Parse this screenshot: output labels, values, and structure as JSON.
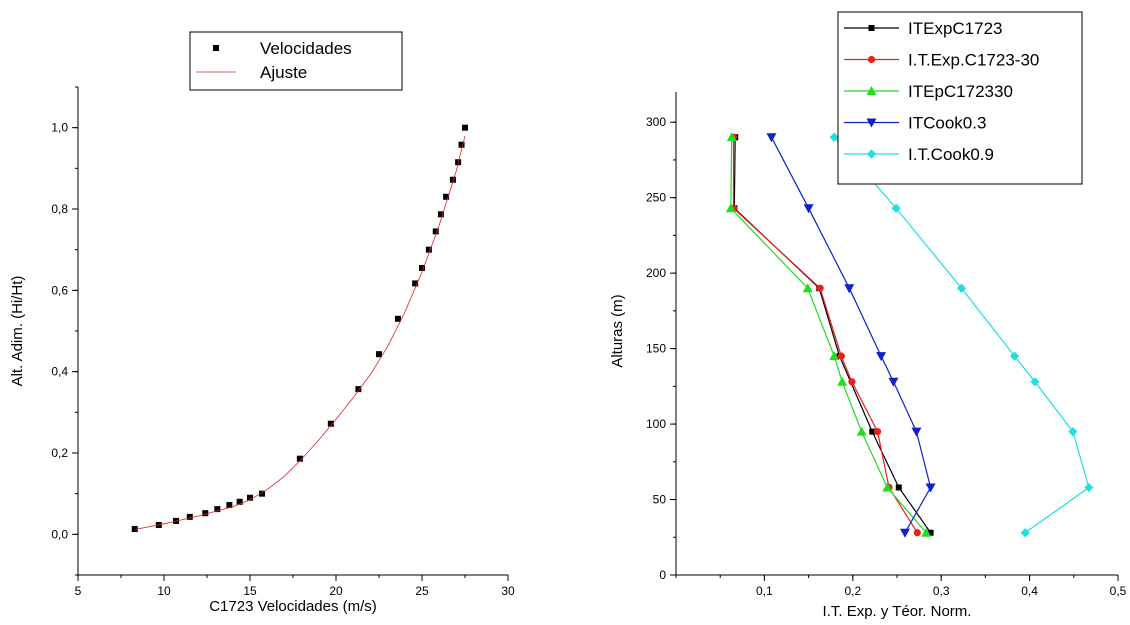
{
  "chart_data": [
    {
      "type": "scatter",
      "xlabel": "C1723 Velocidades (m/s)",
      "ylabel": "Alt. Adim. (Hi/Ht)",
      "xlim": [
        5,
        30
      ],
      "ylim": [
        -0.1,
        1.1
      ],
      "x_ticks": [
        "5",
        "10",
        "15",
        "20",
        "25",
        "30"
      ],
      "y_ticks": [
        "0,0",
        "0,2",
        "0,4",
        "0,6",
        "0,8",
        "1,0"
      ],
      "legend_position": "top",
      "grid": false,
      "series": [
        {
          "name": "Velocidades",
          "style": "markers",
          "color": "#000000",
          "marker": "square",
          "x": [
            8.3,
            9.7,
            10.7,
            11.5,
            12.4,
            13.1,
            13.8,
            14.4,
            15.0,
            15.7,
            17.9,
            19.7,
            21.3,
            22.5,
            23.6,
            24.6,
            25.0,
            25.4,
            25.8,
            26.1,
            26.4,
            26.8,
            27.1,
            27.3,
            27.5
          ],
          "y": [
            0.013,
            0.023,
            0.033,
            0.043,
            0.052,
            0.062,
            0.072,
            0.08,
            0.09,
            0.1,
            0.186,
            0.272,
            0.357,
            0.443,
            0.53,
            0.617,
            0.655,
            0.7,
            0.745,
            0.787,
            0.83,
            0.872,
            0.915,
            0.958,
            1.0
          ]
        },
        {
          "name": "Ajuste",
          "style": "line",
          "color": "#d62728",
          "x": [
            8.3,
            10,
            12,
            14,
            15,
            16,
            17,
            18,
            19,
            20,
            21,
            22,
            23,
            24,
            25,
            26,
            27,
            27.5
          ],
          "y": [
            0.012,
            0.026,
            0.045,
            0.068,
            0.085,
            0.11,
            0.143,
            0.185,
            0.232,
            0.283,
            0.336,
            0.393,
            0.462,
            0.546,
            0.645,
            0.76,
            0.895,
            0.98
          ]
        }
      ]
    },
    {
      "type": "line",
      "xlabel": "I.T. Exp. y Téor. Norm.",
      "ylabel": "Alturas (m)",
      "xlim": [
        0.0,
        0.5
      ],
      "ylim": [
        0,
        320
      ],
      "x_ticks": [
        "0,1",
        "0,2",
        "0,3",
        "0,4",
        "0,5"
      ],
      "y_ticks": [
        "0",
        "50",
        "100",
        "150",
        "200",
        "250",
        "300"
      ],
      "legend_position": "top-right",
      "grid": false,
      "series": [
        {
          "name": "ITExpC1723",
          "color": "#000000",
          "marker": "square",
          "x": [
            0.288,
            0.252,
            0.222,
            0.185,
            0.162,
            0.066,
            0.067
          ],
          "y": [
            28,
            58,
            95,
            145,
            190,
            243,
            290
          ]
        },
        {
          "name": "I.T.Exp.C1723-30",
          "color": "#e8211a",
          "marker": "circle",
          "x": [
            0.273,
            0.241,
            0.228,
            0.199,
            0.187,
            0.163,
            0.065,
            0.065
          ],
          "y": [
            28,
            58,
            95,
            128,
            145,
            190,
            243,
            290
          ]
        },
        {
          "name": "ITEpC172330",
          "color": "#22dd22",
          "marker": "triangle-up",
          "x": [
            0.283,
            0.239,
            0.21,
            0.188,
            0.179,
            0.149,
            0.062,
            0.063
          ],
          "y": [
            28,
            58,
            95,
            128,
            145,
            190,
            243,
            290
          ]
        },
        {
          "name": "ITCook0.3",
          "color": "#1020cc",
          "marker": "triangle-down",
          "x": [
            0.259,
            0.288,
            0.272,
            0.246,
            0.232,
            0.196,
            0.15,
            0.108
          ],
          "y": [
            28,
            58,
            95,
            128,
            145,
            190,
            243,
            290
          ]
        },
        {
          "name": "I.T.Cook0.9",
          "color": "#22dddd",
          "marker": "diamond",
          "x": [
            0.395,
            0.467,
            0.449,
            0.406,
            0.383,
            0.323,
            0.249,
            0.179
          ],
          "y": [
            28,
            58,
            95,
            128,
            145,
            190,
            243,
            290
          ]
        }
      ]
    }
  ]
}
